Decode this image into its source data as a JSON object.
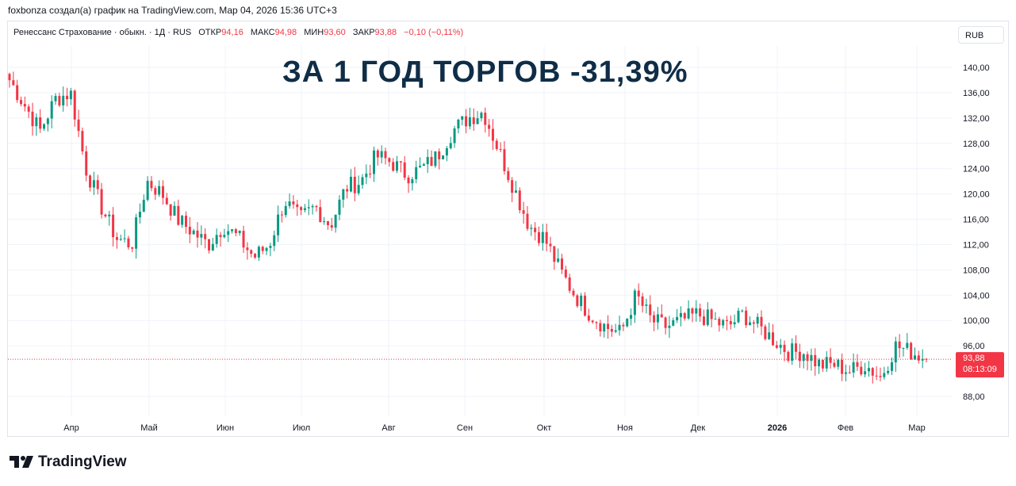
{
  "caption": "foxbonza создал(а) график на TradingView.com, Мар 04, 2026 15:36 UTC+3",
  "legend": {
    "symbol": "Ренессанс Страхование · обыкн. · 1Д · RUS",
    "open_label": "ОТКР",
    "open_value": "94,16",
    "high_label": "МАКС",
    "high_value": "94,98",
    "low_label": "МИН",
    "low_value": "93,60",
    "close_label": "ЗАКР",
    "close_value": "93,88",
    "change": "−0,10 (−0,11%)"
  },
  "currency_button": "RUB",
  "headline": "ЗА 1 ГОД ТОРГОВ -31,39%",
  "price_badge": {
    "price": "93,88",
    "countdown": "08:13:09"
  },
  "brand": "TradingView",
  "colors": {
    "up": "#089981",
    "down": "#f23645",
    "grid": "#f0f3fa",
    "headline": "#0f2d47"
  },
  "chart_data": {
    "type": "candlestick",
    "y_ticks": [
      "140,00",
      "136,00",
      "132,00",
      "128,00",
      "124,00",
      "120,00",
      "116,00",
      "112,00",
      "108,00",
      "104,00",
      "100,00",
      "96,00",
      "88,00"
    ],
    "y_tick_values": [
      140,
      136,
      132,
      128,
      124,
      120,
      116,
      112,
      108,
      104,
      100,
      96,
      88
    ],
    "x_ticks": [
      "Апр",
      "Май",
      "Июн",
      "Июл",
      "Авг",
      "Сен",
      "Окт",
      "Ноя",
      "Дек",
      "2026",
      "Фев",
      "Мар"
    ],
    "last_close": 93.88,
    "anchor_closes": [
      138,
      134,
      130,
      135,
      136,
      124,
      118,
      113,
      112,
      122,
      120,
      116,
      114,
      112,
      115,
      113,
      110,
      112,
      119,
      116,
      118,
      115,
      121,
      122,
      126,
      125,
      123,
      124,
      126,
      130,
      132,
      133,
      127,
      121,
      115,
      113,
      108,
      104,
      101,
      99,
      98,
      104,
      100,
      99,
      100,
      101,
      100,
      99,
      101,
      99,
      97,
      95,
      95,
      93,
      93,
      92,
      93,
      91,
      96,
      95,
      94
    ]
  }
}
